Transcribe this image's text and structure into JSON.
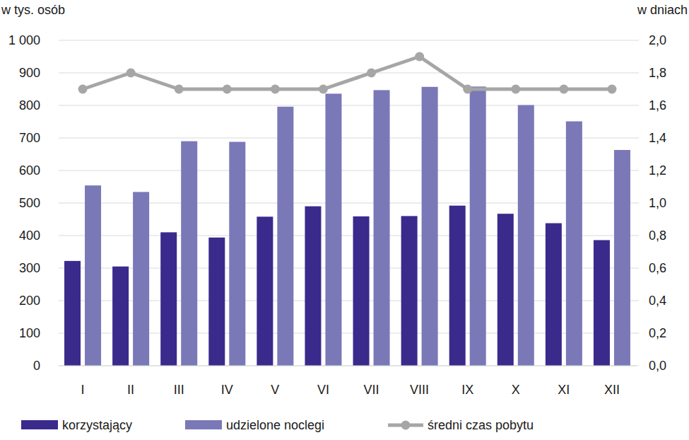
{
  "chart_data": {
    "type": "bar",
    "y_label": "w tys. osób",
    "y2_label": "w dniach",
    "categories": [
      "I",
      "II",
      "III",
      "IV",
      "V",
      "VI",
      "VII",
      "VIII",
      "IX",
      "X",
      "XI",
      "XII"
    ],
    "series": [
      {
        "name": "korzystający",
        "type": "bar",
        "color": "#3a2a8c",
        "values": [
          322,
          305,
          410,
          394,
          458,
          490,
          459,
          460,
          492,
          467,
          438,
          386
        ]
      },
      {
        "name": "udzielone noclegi",
        "type": "bar",
        "color": "#7b78b8",
        "values": [
          554,
          534,
          690,
          688,
          796,
          836,
          847,
          857,
          858,
          801,
          751,
          663
        ]
      },
      {
        "name": "średni czas pobytu",
        "type": "line",
        "axis": "y2",
        "color": "#a6a6a6",
        "marker": "circle",
        "values": [
          1.7,
          1.8,
          1.7,
          1.7,
          1.7,
          1.7,
          1.8,
          1.9,
          1.7,
          1.7,
          1.7,
          1.7
        ]
      }
    ],
    "ylim": [
      0,
      1000
    ],
    "yticks": [
      0,
      100,
      200,
      300,
      400,
      500,
      600,
      700,
      800,
      900,
      {
        "value": 1000,
        "label": "1 000"
      }
    ],
    "y2lim": [
      0,
      2
    ],
    "y2ticks": [
      {
        "value": 0,
        "label": "0,0"
      },
      {
        "value": 0.2,
        "label": "0,2"
      },
      {
        "value": 0.4,
        "label": "0,4"
      },
      {
        "value": 0.6,
        "label": "0,6"
      },
      {
        "value": 0.8,
        "label": "0,8"
      },
      {
        "value": 1,
        "label": "1,0"
      },
      {
        "value": 1.2,
        "label": "1,2"
      },
      {
        "value": 1.4,
        "label": "1,4"
      },
      {
        "value": 1.6,
        "label": "1,6"
      },
      {
        "value": 1.8,
        "label": "1,8"
      },
      {
        "value": 2,
        "label": "2,0"
      }
    ],
    "grid": true,
    "legend": "bottom"
  }
}
